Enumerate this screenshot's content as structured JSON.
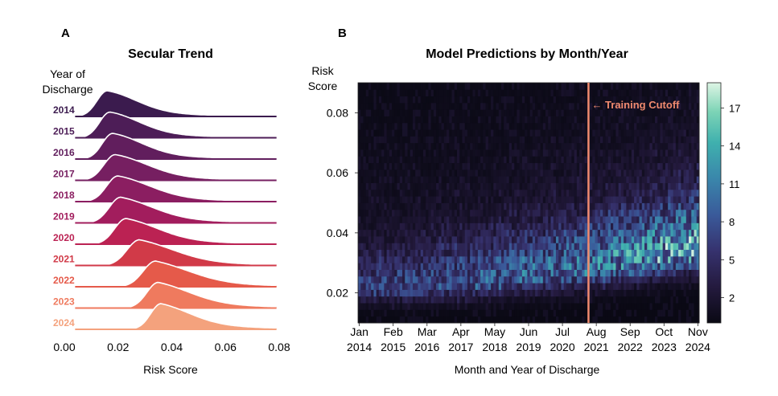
{
  "chart_data": [
    {
      "panel": "A",
      "type": "ridgeline",
      "title": "Secular Trend",
      "xlabel": "Risk Score",
      "ylabel_line1": "Year of",
      "ylabel_line2": "Discharge",
      "xlim": [
        0.0,
        0.08
      ],
      "xticks": [
        "0.00",
        "0.02",
        "0.04",
        "0.06",
        "0.08"
      ],
      "xtick_values": [
        0.0,
        0.02,
        0.04,
        0.06,
        0.08
      ],
      "series": [
        {
          "name": "2014",
          "color": "#3b1b4e",
          "mode": 0.016,
          "spread": 0.01,
          "tail": 0.35
        },
        {
          "name": "2015",
          "color": "#4d1d57",
          "mode": 0.017,
          "spread": 0.01,
          "tail": 0.35
        },
        {
          "name": "2016",
          "color": "#611e5d",
          "mode": 0.018,
          "spread": 0.01,
          "tail": 0.35
        },
        {
          "name": "2017",
          "color": "#761f61",
          "mode": 0.019,
          "spread": 0.011,
          "tail": 0.35
        },
        {
          "name": "2018",
          "color": "#8b1e61",
          "mode": 0.02,
          "spread": 0.011,
          "tail": 0.38
        },
        {
          "name": "2019",
          "color": "#a21d5d",
          "mode": 0.021,
          "spread": 0.011,
          "tail": 0.4
        },
        {
          "name": "2020",
          "color": "#bb2253",
          "mode": 0.023,
          "spread": 0.011,
          "tail": 0.4
        },
        {
          "name": "2021",
          "color": "#d13a48",
          "mode": 0.028,
          "spread": 0.012,
          "tail": 0.42
        },
        {
          "name": "2022",
          "color": "#e55a4a",
          "mode": 0.034,
          "spread": 0.012,
          "tail": 0.45
        },
        {
          "name": "2023",
          "color": "#ef7a5e",
          "mode": 0.035,
          "spread": 0.011,
          "tail": 0.45
        },
        {
          "name": "2024",
          "color": "#f4a27d",
          "mode": 0.036,
          "spread": 0.01,
          "tail": 0.45
        }
      ]
    },
    {
      "panel": "B",
      "type": "heatmap",
      "title": "Model Predictions by Month/Year",
      "xlabel": "Month and Year of Discharge",
      "ylabel_line1": "Risk",
      "ylabel_line2": "Score",
      "ylim": [
        0.01,
        0.09
      ],
      "yticks": [
        "0.02",
        "0.04",
        "0.06",
        "0.08"
      ],
      "ytick_values": [
        0.02,
        0.04,
        0.06,
        0.08
      ],
      "xticks": [
        {
          "month": "Jan",
          "year": "2014",
          "index": 0
        },
        {
          "month": "Feb",
          "year": "2015",
          "index": 13
        },
        {
          "month": "Mar",
          "year": "2016",
          "index": 26
        },
        {
          "month": "Apr",
          "year": "2017",
          "index": 39
        },
        {
          "month": "May",
          "year": "2018",
          "index": 52
        },
        {
          "month": "Jun",
          "year": "2019",
          "index": 65
        },
        {
          "month": "Jul",
          "year": "2020",
          "index": 78
        },
        {
          "month": "Aug",
          "year": "2021",
          "index": 91
        },
        {
          "month": "Sep",
          "year": "2022",
          "index": 104
        },
        {
          "month": "Oct",
          "year": "2023",
          "index": 117
        },
        {
          "month": "Nov",
          "year": "2024",
          "index": 130
        }
      ],
      "n_months": 131,
      "n_bins": 36,
      "cutoff_index": 88.5,
      "cutoff_label": "← Training Cutoff",
      "cutoff_color": "#f08a6f",
      "colorbar": {
        "ticks": [
          "2",
          "5",
          "8",
          "11",
          "14",
          "17"
        ],
        "tick_values": [
          2,
          5,
          8,
          11,
          14,
          17
        ],
        "min": 0,
        "max": 19
      }
    }
  ],
  "figure": {
    "panel_a_label": "A",
    "panel_b_label": "B"
  }
}
